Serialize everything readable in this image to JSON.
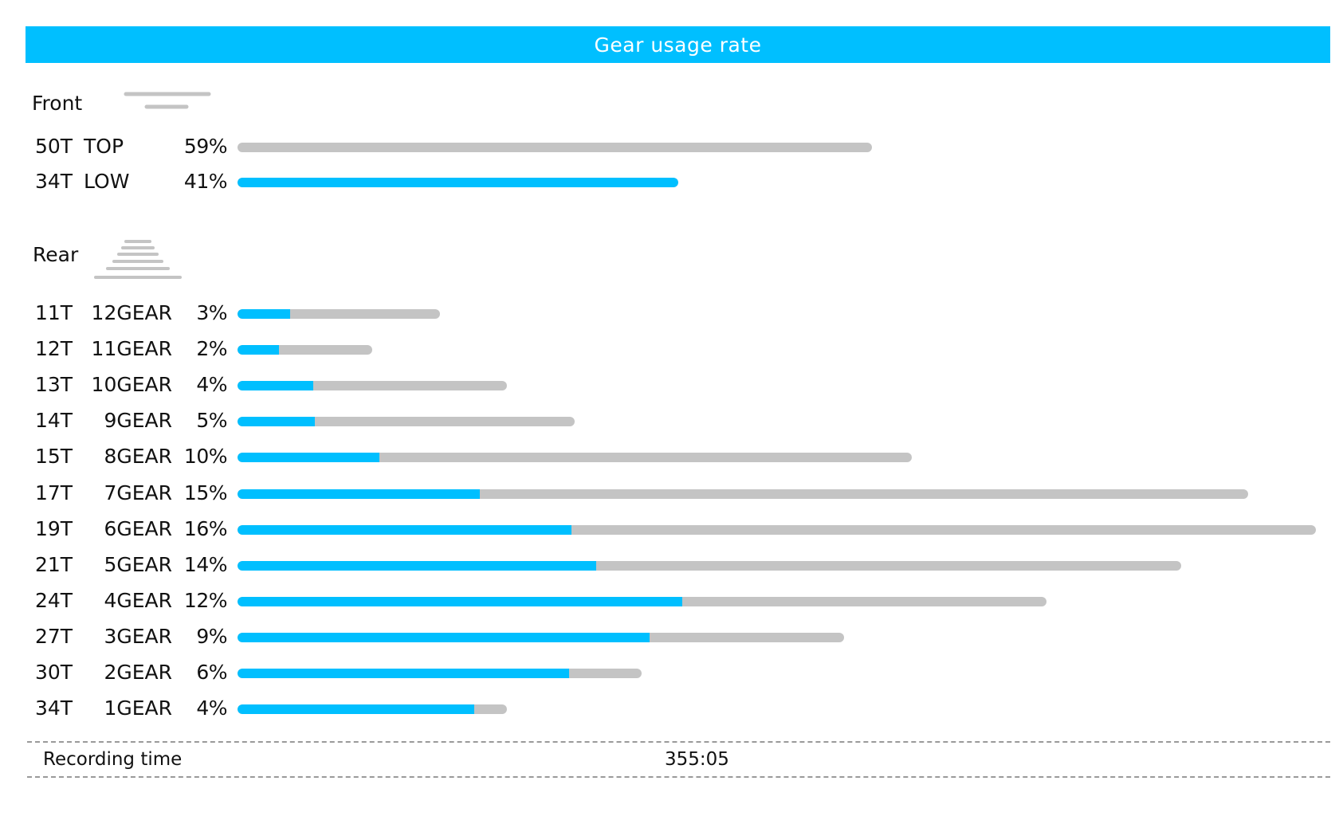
{
  "chart_data": {
    "type": "bar",
    "title": "Gear usage rate",
    "front": {
      "label": "Front",
      "icon": "front-chainring-icon",
      "rows": [
        {
          "teeth": "50T",
          "gear": "TOP",
          "pct_label": "59%",
          "value": 59,
          "fill": 0
        },
        {
          "teeth": "34T",
          "gear": "LOW",
          "pct_label": "41%",
          "value": 41,
          "fill": 1
        }
      ]
    },
    "rear": {
      "label": "Rear",
      "icon": "rear-cassette-icon",
      "rows": [
        {
          "teeth": "11T",
          "gear": "12GEAR",
          "pct_label": "3%",
          "value": 3,
          "fill": 0.26
        },
        {
          "teeth": "12T",
          "gear": "11GEAR",
          "pct_label": "2%",
          "value": 2,
          "fill": 0.31
        },
        {
          "teeth": "13T",
          "gear": "10GEAR",
          "pct_label": "4%",
          "value": 4,
          "fill": 0.28
        },
        {
          "teeth": "14T",
          "gear": "9GEAR",
          "pct_label": "5%",
          "value": 5,
          "fill": 0.23
        },
        {
          "teeth": "15T",
          "gear": "8GEAR",
          "pct_label": "10%",
          "value": 10,
          "fill": 0.21
        },
        {
          "teeth": "17T",
          "gear": "7GEAR",
          "pct_label": "15%",
          "value": 15,
          "fill": 0.24
        },
        {
          "teeth": "19T",
          "gear": "6GEAR",
          "pct_label": "16%",
          "value": 16,
          "fill": 0.31
        },
        {
          "teeth": "21T",
          "gear": "5GEAR",
          "pct_label": "14%",
          "value": 14,
          "fill": 0.38
        },
        {
          "teeth": "24T",
          "gear": "4GEAR",
          "pct_label": "12%",
          "value": 12,
          "fill": 0.55
        },
        {
          "teeth": "27T",
          "gear": "3GEAR",
          "pct_label": "9%",
          "value": 9,
          "fill": 0.68
        },
        {
          "teeth": "30T",
          "gear": "2GEAR",
          "pct_label": "6%",
          "value": 6,
          "fill": 0.82
        },
        {
          "teeth": "34T",
          "gear": "1GEAR",
          "pct_label": "4%",
          "value": 4,
          "fill": 0.88
        }
      ]
    },
    "max_value": 59,
    "colors": {
      "accent": "#00bfff",
      "track": "#c4c4c4"
    }
  },
  "footer": {
    "recording_label": "Recording time",
    "recording_value": "355:05"
  }
}
